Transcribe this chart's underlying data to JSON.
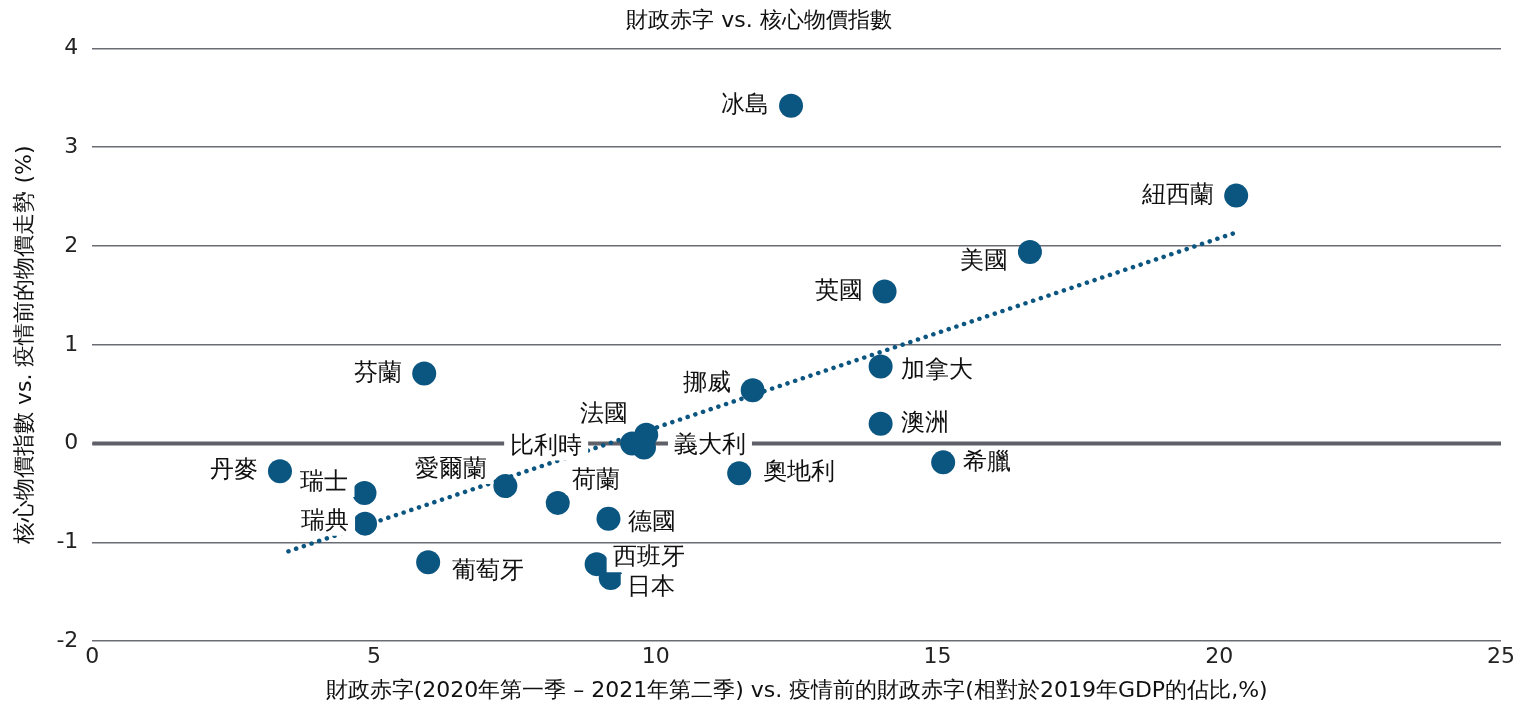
{
  "chart_data": {
    "type": "scatter",
    "title": "財政赤字 vs. 核心物價指數",
    "xlabel": "財政赤字(2020年第一季 – 2021年第二季) vs. 疫情前的財政赤字(相對於2019年GDP的佔比,%)",
    "ylabel": "核心物價指數 vs. 疫情前的物價走勢 (%)",
    "xlim": [
      0,
      25
    ],
    "xticks": [
      0,
      5,
      10,
      15,
      20,
      25
    ],
    "ylim": [
      -2,
      4
    ],
    "yticks": [
      -2,
      -1,
      0,
      1,
      2,
      3,
      4
    ],
    "grid": "y",
    "legend": false,
    "ref_lines": [
      {
        "axis": "y",
        "value": 0,
        "color": "#5f6068"
      }
    ],
    "series": [
      {
        "type": "scatter",
        "marker": "circle",
        "color": "#0b5581",
        "x": [
          12.4,
          20.3,
          16.64,
          14.06,
          13.99,
          5.89,
          11.72,
          13.99,
          9.83,
          9.58,
          9.79,
          15.1,
          3.33,
          11.48,
          7.33,
          4.83,
          8.26,
          4.84,
          9.16,
          5.96,
          8.95,
          9.2
        ],
        "values": [
          3.42,
          2.51,
          1.94,
          1.54,
          0.78,
          0.71,
          0.54,
          0.2,
          0.09,
          0.0,
          -0.04,
          -0.19,
          -0.28,
          -0.3,
          -0.43,
          -0.5,
          -0.6,
          -0.81,
          -0.76,
          -1.2,
          -1.22,
          -1.36
        ]
      },
      {
        "type": "line",
        "color": "#0b5581",
        "line_style": "dotted",
        "x": [
          3.48,
          20.26
        ],
        "values": [
          -1.09,
          2.13
        ]
      }
    ],
    "annotations": [
      {
        "text": "冰島",
        "x": 12.4,
        "y": 3.42
      },
      {
        "text": "紐西蘭",
        "x": 20.3,
        "y": 2.51
      },
      {
        "text": "美國",
        "x": 16.64,
        "y": 1.94
      },
      {
        "text": "英國",
        "x": 14.06,
        "y": 1.54
      },
      {
        "text": "加拿大",
        "x": 13.99,
        "y": 0.78
      },
      {
        "text": "芬蘭",
        "x": 5.89,
        "y": 0.71
      },
      {
        "text": "挪威",
        "x": 11.72,
        "y": 0.54
      },
      {
        "text": "澳洲",
        "x": 13.99,
        "y": 0.2
      },
      {
        "text": "法國",
        "x": 9.83,
        "y": 0.09
      },
      {
        "text": "比利時",
        "x": 9.58,
        "y": 0.0
      },
      {
        "text": "義大利",
        "x": 9.79,
        "y": -0.04
      },
      {
        "text": "希臘",
        "x": 15.1,
        "y": -0.19
      },
      {
        "text": "丹麥",
        "x": 3.33,
        "y": -0.28
      },
      {
        "text": "奧地利",
        "x": 11.48,
        "y": -0.3
      },
      {
        "text": "愛爾蘭",
        "x": 7.33,
        "y": -0.43
      },
      {
        "text": "瑞士",
        "x": 4.83,
        "y": -0.5
      },
      {
        "text": "荷蘭",
        "x": 8.26,
        "y": -0.6
      },
      {
        "text": "瑞典",
        "x": 4.84,
        "y": -0.81
      },
      {
        "text": "德國",
        "x": 9.16,
        "y": -0.76
      },
      {
        "text": "葡萄牙",
        "x": 5.96,
        "y": -1.2
      },
      {
        "text": "西班牙",
        "x": 8.95,
        "y": -1.22
      },
      {
        "text": "日本",
        "x": 9.2,
        "y": -1.36
      }
    ]
  }
}
